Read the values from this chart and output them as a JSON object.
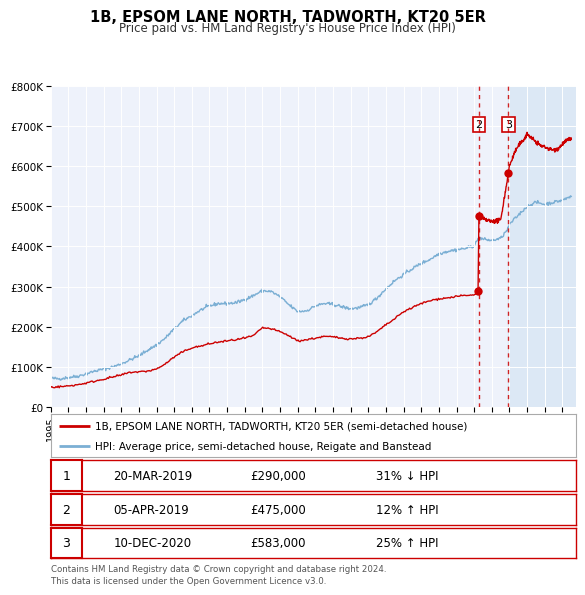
{
  "title": "1B, EPSOM LANE NORTH, TADWORTH, KT20 5ER",
  "subtitle": "Price paid vs. HM Land Registry's House Price Index (HPI)",
  "red_label": "1B, EPSOM LANE NORTH, TADWORTH, KT20 5ER (semi-detached house)",
  "blue_label": "HPI: Average price, semi-detached house, Reigate and Banstead",
  "transactions": [
    {
      "num": 1,
      "date": "20-MAR-2019",
      "price": "£290,000",
      "hpi": "31% ↓ HPI",
      "year": 2019.22,
      "value": 290000
    },
    {
      "num": 2,
      "date": "05-APR-2019",
      "price": "£475,000",
      "hpi": "12% ↑ HPI",
      "year": 2019.27,
      "value": 475000
    },
    {
      "num": 3,
      "date": "10-DEC-2020",
      "price": "£583,000",
      "hpi": "25% ↑ HPI",
      "year": 2020.94,
      "value": 583000
    }
  ],
  "vline_2_x": 2019.27,
  "vline_3_x": 2020.94,
  "shade_from": 2020.94,
  "shade_to": 2024.5,
  "footer": "Contains HM Land Registry data © Crown copyright and database right 2024.\nThis data is licensed under the Open Government Licence v3.0.",
  "red_color": "#cc0000",
  "blue_color": "#7bafd4",
  "background_color": "#eef2fb",
  "shade_color": "#dce8f5",
  "ylim": [
    0,
    800000
  ],
  "xlim_start": 1995.0,
  "xlim_end": 2024.75,
  "hpi_data": [
    [
      1995.0,
      72000
    ],
    [
      1995.5,
      71000
    ],
    [
      1996.0,
      74000
    ],
    [
      1996.5,
      77000
    ],
    [
      1997.0,
      83000
    ],
    [
      1997.5,
      90000
    ],
    [
      1998.0,
      95000
    ],
    [
      1998.5,
      100000
    ],
    [
      1999.0,
      108000
    ],
    [
      1999.5,
      118000
    ],
    [
      2000.0,
      128000
    ],
    [
      2000.5,
      142000
    ],
    [
      2001.0,
      155000
    ],
    [
      2001.5,
      172000
    ],
    [
      2002.0,
      195000
    ],
    [
      2002.5,
      215000
    ],
    [
      2003.0,
      228000
    ],
    [
      2003.5,
      242000
    ],
    [
      2004.0,
      252000
    ],
    [
      2004.5,
      258000
    ],
    [
      2005.0,
      258000
    ],
    [
      2005.5,
      260000
    ],
    [
      2006.0,
      268000
    ],
    [
      2006.5,
      278000
    ],
    [
      2007.0,
      290000
    ],
    [
      2007.5,
      288000
    ],
    [
      2008.0,
      275000
    ],
    [
      2008.5,
      255000
    ],
    [
      2009.0,
      238000
    ],
    [
      2009.5,
      240000
    ],
    [
      2010.0,
      252000
    ],
    [
      2010.5,
      258000
    ],
    [
      2011.0,
      256000
    ],
    [
      2011.5,
      250000
    ],
    [
      2012.0,
      245000
    ],
    [
      2012.5,
      248000
    ],
    [
      2013.0,
      255000
    ],
    [
      2013.5,
      272000
    ],
    [
      2014.0,
      295000
    ],
    [
      2014.5,
      315000
    ],
    [
      2015.0,
      330000
    ],
    [
      2015.5,
      345000
    ],
    [
      2016.0,
      358000
    ],
    [
      2016.5,
      368000
    ],
    [
      2017.0,
      382000
    ],
    [
      2017.5,
      388000
    ],
    [
      2018.0,
      392000
    ],
    [
      2018.5,
      395000
    ],
    [
      2019.0,
      402000
    ],
    [
      2019.27,
      422000
    ],
    [
      2019.5,
      418000
    ],
    [
      2020.0,
      415000
    ],
    [
      2020.5,
      420000
    ],
    [
      2020.94,
      445000
    ],
    [
      2021.0,
      455000
    ],
    [
      2021.5,
      478000
    ],
    [
      2022.0,
      500000
    ],
    [
      2022.5,
      510000
    ],
    [
      2023.0,
      505000
    ],
    [
      2023.5,
      510000
    ],
    [
      2024.0,
      515000
    ],
    [
      2024.5,
      525000
    ]
  ],
  "red_data_pre": [
    [
      1995.0,
      50000
    ],
    [
      1995.5,
      51000
    ],
    [
      1996.0,
      53000
    ],
    [
      1996.5,
      56000
    ],
    [
      1997.0,
      60000
    ],
    [
      1997.5,
      65000
    ],
    [
      1998.0,
      70000
    ],
    [
      1998.5,
      75000
    ],
    [
      1999.0,
      80000
    ],
    [
      1999.5,
      87000
    ],
    [
      2000.0,
      88000
    ],
    [
      2000.5,
      90000
    ],
    [
      2001.0,
      95000
    ],
    [
      2001.5,
      108000
    ],
    [
      2002.0,
      125000
    ],
    [
      2002.5,
      138000
    ],
    [
      2003.0,
      148000
    ],
    [
      2003.5,
      152000
    ],
    [
      2004.0,
      158000
    ],
    [
      2004.5,
      162000
    ],
    [
      2005.0,
      165000
    ],
    [
      2005.5,
      168000
    ],
    [
      2006.0,
      172000
    ],
    [
      2006.5,
      178000
    ],
    [
      2007.0,
      198000
    ],
    [
      2007.5,
      195000
    ],
    [
      2008.0,
      188000
    ],
    [
      2008.5,
      178000
    ],
    [
      2009.0,
      165000
    ],
    [
      2009.5,
      168000
    ],
    [
      2010.0,
      172000
    ],
    [
      2010.5,
      176000
    ],
    [
      2011.0,
      175000
    ],
    [
      2011.5,
      172000
    ],
    [
      2012.0,
      170000
    ],
    [
      2012.5,
      172000
    ],
    [
      2013.0,
      175000
    ],
    [
      2013.5,
      188000
    ],
    [
      2014.0,
      205000
    ],
    [
      2014.5,
      220000
    ],
    [
      2015.0,
      238000
    ],
    [
      2015.5,
      248000
    ],
    [
      2016.0,
      258000
    ],
    [
      2016.5,
      265000
    ],
    [
      2017.0,
      270000
    ],
    [
      2017.5,
      272000
    ],
    [
      2018.0,
      276000
    ],
    [
      2018.5,
      278000
    ],
    [
      2019.0,
      279000
    ],
    [
      2019.22,
      290000
    ]
  ],
  "red_data_post": [
    [
      2019.27,
      475000
    ],
    [
      2019.5,
      468000
    ],
    [
      2020.0,
      462000
    ],
    [
      2020.5,
      465000
    ],
    [
      2020.94,
      583000
    ],
    [
      2021.0,
      600000
    ],
    [
      2021.3,
      635000
    ],
    [
      2021.5,
      650000
    ],
    [
      2021.8,
      665000
    ],
    [
      2022.0,
      680000
    ],
    [
      2022.2,
      672000
    ],
    [
      2022.5,
      660000
    ],
    [
      2022.8,
      650000
    ],
    [
      2023.0,
      648000
    ],
    [
      2023.3,
      642000
    ],
    [
      2023.5,
      640000
    ],
    [
      2023.8,
      645000
    ],
    [
      2024.0,
      655000
    ],
    [
      2024.3,
      665000
    ],
    [
      2024.5,
      668000
    ]
  ]
}
